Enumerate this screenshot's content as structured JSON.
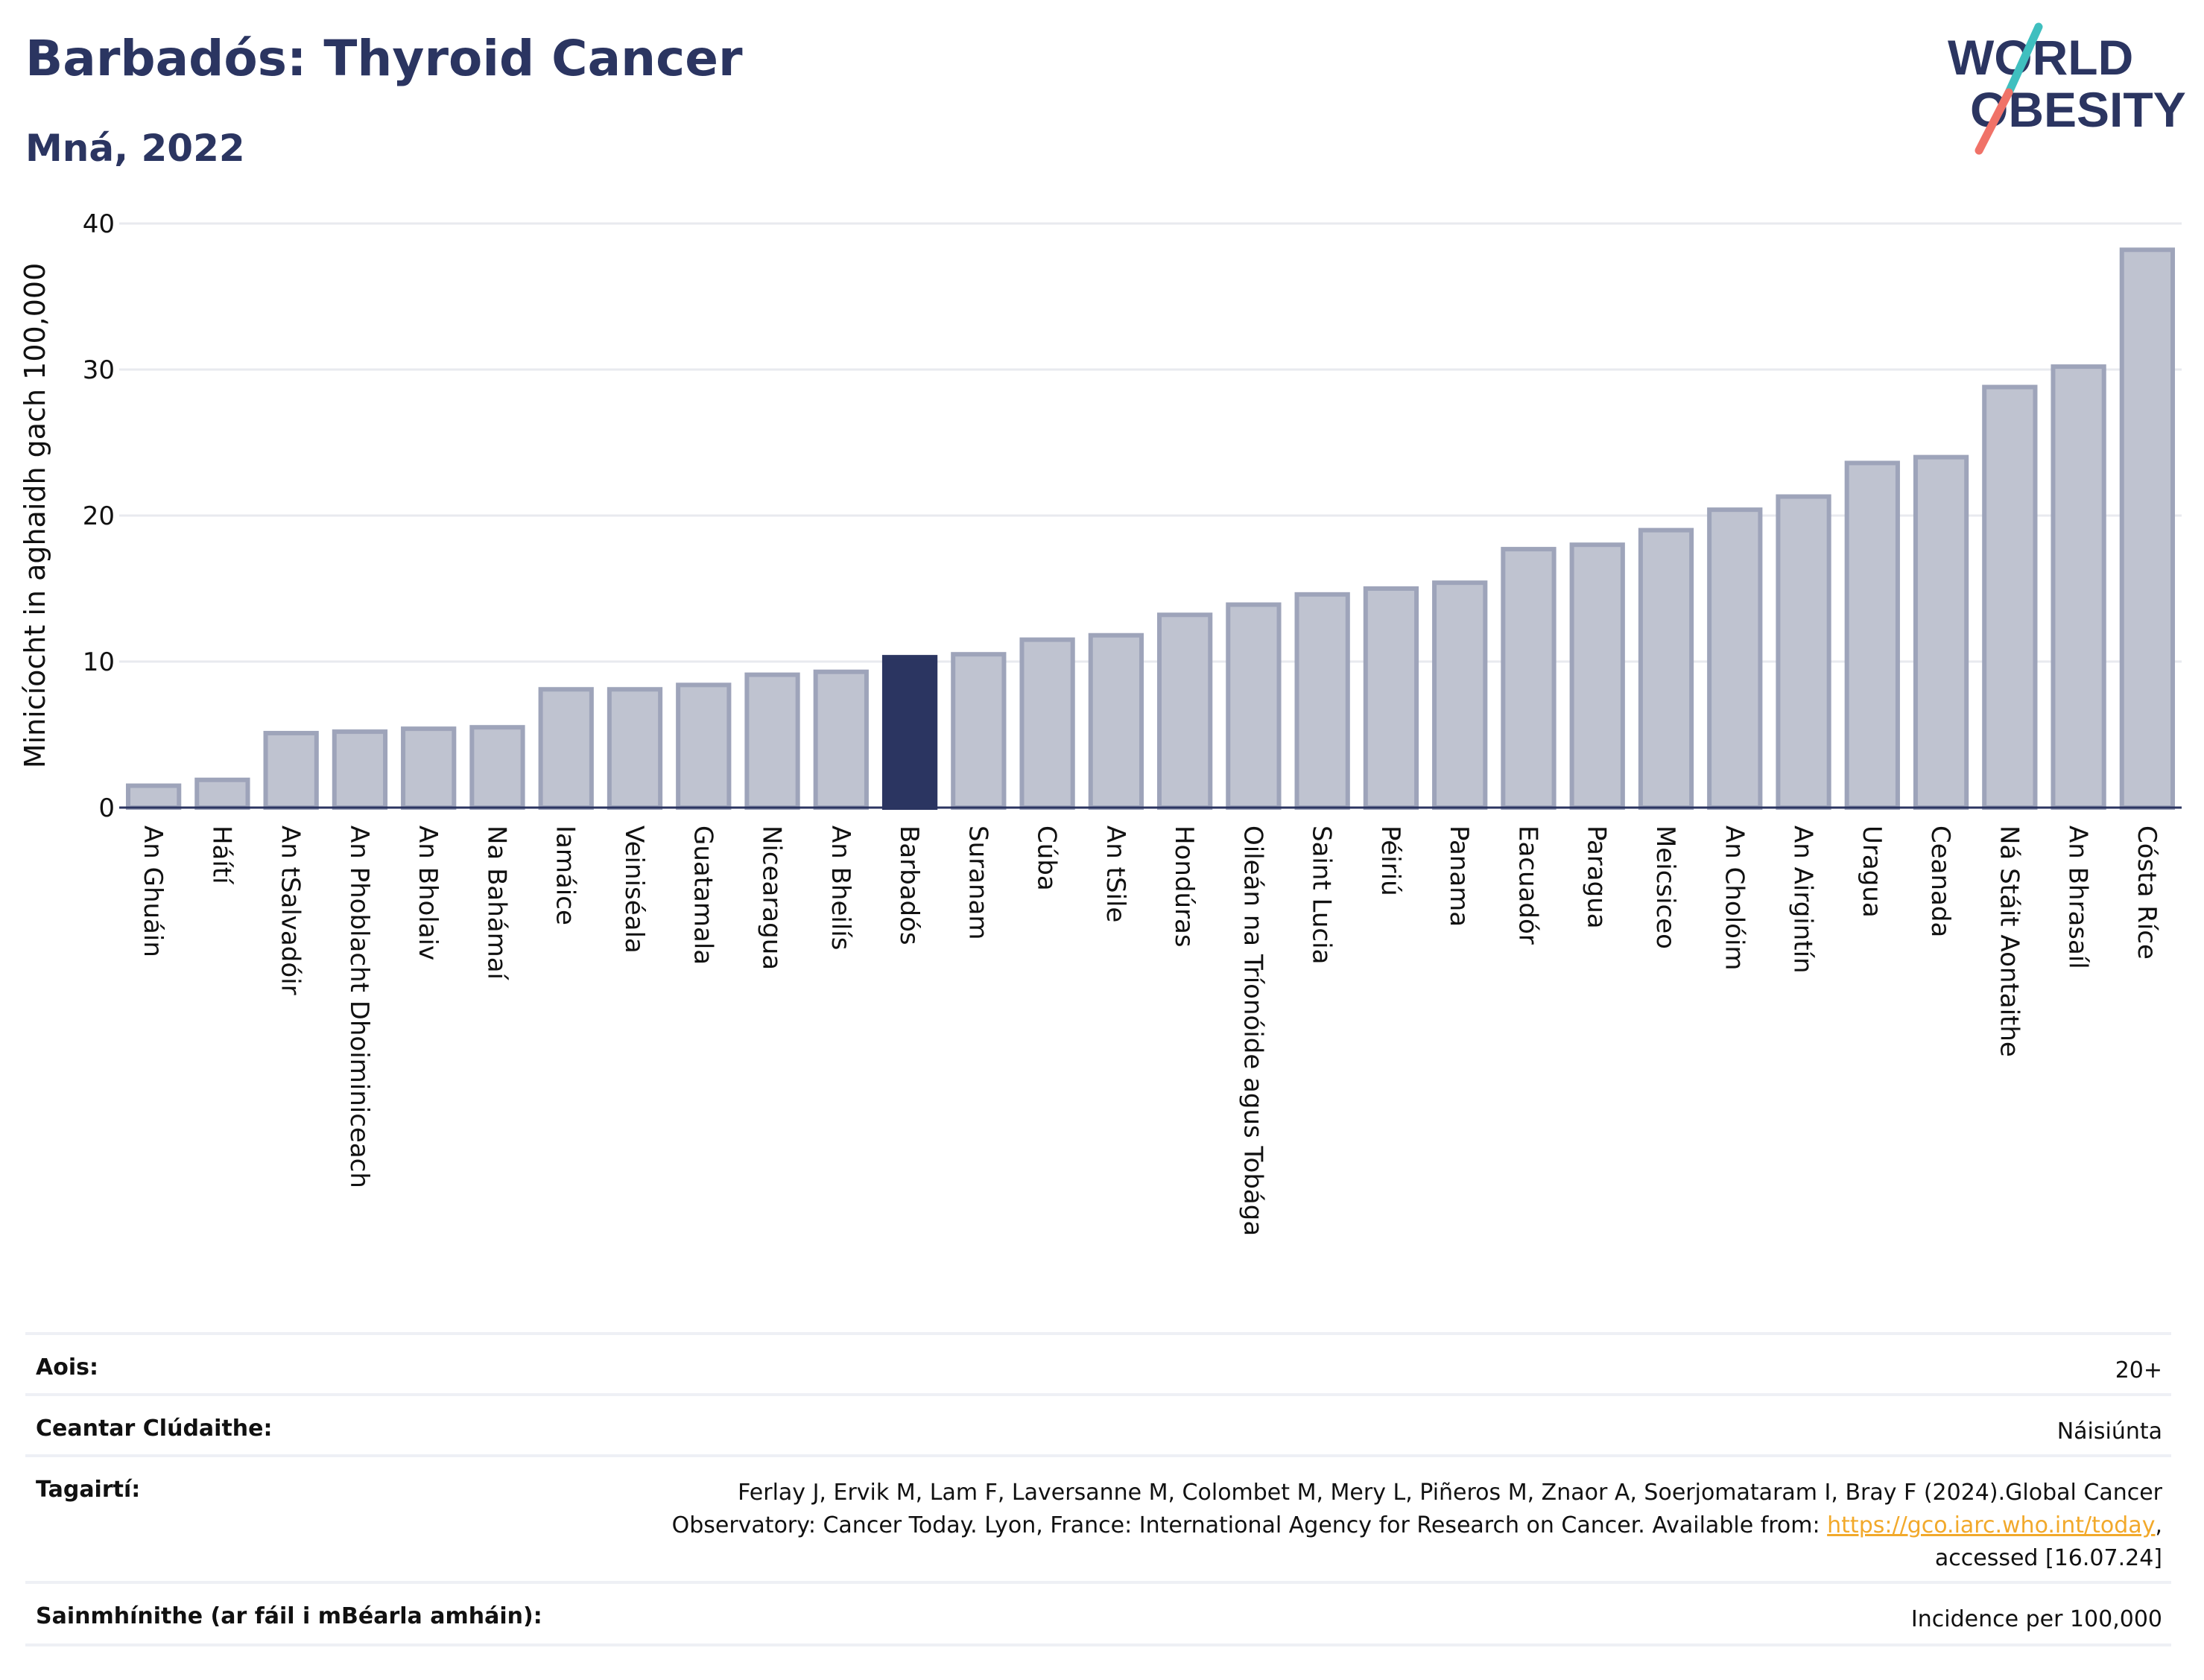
{
  "header": {
    "title": "Barbadós: Thyroid Cancer",
    "subtitle": "Mná, 2022"
  },
  "logo": {
    "line1": "WORLD",
    "line2": "OBESITY",
    "colors": {
      "text": "#2b3561",
      "slash_top": "#3fbfbf",
      "slash_bottom": "#f07268"
    }
  },
  "chart_data": {
    "type": "bar",
    "title": "Barbadós: Thyroid Cancer",
    "subtitle": "Mná, 2022",
    "xlabel": "",
    "ylabel": "Minicíocht in aghaidh gach 100,000",
    "ylim": [
      0,
      40
    ],
    "yticks": [
      0,
      10,
      20,
      30,
      40
    ],
    "grid": true,
    "categories": [
      "An Ghuáin",
      "Háítí",
      "An tSalvadóir",
      "An Phoblacht Dhoiminiceach",
      "An Bholaiv",
      "Na Bahámaí",
      "Iamáice",
      "Veiniséala",
      "Guatamala",
      "Nicearagua",
      "An Bheilís",
      "Barbadós",
      "Suranam",
      "Cúba",
      "An tSile",
      "Hondúras",
      "Oileán na Tríonóide agus Tobága",
      "Saint Lucia",
      "Péiriú",
      "Panama",
      "Eacuadór",
      "Paragua",
      "Meicsiceo",
      "An Cholóim",
      "An Airgintín",
      "Uragua",
      "Ceanada",
      "Ná Stáit Aontaithe",
      "An Bhrasaíl",
      "Cósta Ríce"
    ],
    "values": [
      1.5,
      1.9,
      5.1,
      5.2,
      5.4,
      5.5,
      8.1,
      8.1,
      8.4,
      9.1,
      9.3,
      10.3,
      10.5,
      11.5,
      11.8,
      13.2,
      13.9,
      14.6,
      15.0,
      15.4,
      17.7,
      18.0,
      19.0,
      20.4,
      21.3,
      23.6,
      24.0,
      28.8,
      30.2,
      38.2
    ],
    "highlight": "Barbadós",
    "colors": {
      "bar": "#bfc3d0",
      "bar_edge": "#9ea4ba",
      "highlight": "#2b3561",
      "axis": "#2b3561",
      "grid": "#e8eaef"
    }
  },
  "meta": {
    "rows": [
      {
        "label": "Aois:",
        "value": "20+"
      },
      {
        "label": "Ceantar Clúdaithe:",
        "value": "Náisiúnta"
      },
      {
        "label": "Tagairtí:",
        "value_line1": "Ferlay J, Ervik M, Lam F, Laversanne M, Colombet M, Mery L, Piñeros M, Znaor A, Soerjomataram I, Bray F (2024).Global Cancer",
        "value_line2_pre": "Observatory: Cancer Today. Lyon, France: International Agency for Research on Cancer. Available from: ",
        "link": "https://gco.iarc.who.int/today",
        "value_line2_post": ",",
        "value_line3": "accessed [16.07.24]"
      },
      {
        "label": "Sainmhínithe (ar fáil i mBéarla amháin):",
        "value": "Incidence per 100,000"
      }
    ]
  }
}
